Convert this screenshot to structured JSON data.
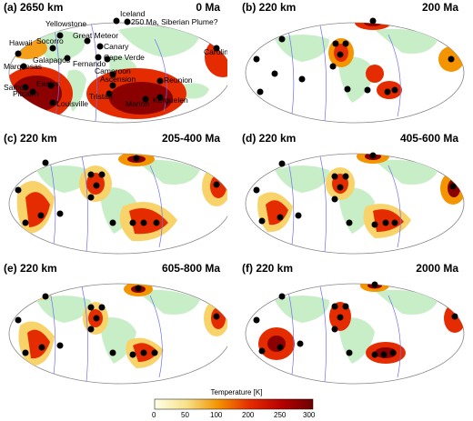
{
  "colors": {
    "hot": "#8b0000",
    "warm": "#e52c00",
    "mid": "#f39400",
    "cool": "#f7d36a",
    "continent": "#c8eec8",
    "plate_boundary": "#6e6ef7",
    "hotspot": "#000000"
  },
  "panels": [
    {
      "label": "(a) 2650 km",
      "age": "0 Ma"
    },
    {
      "label": "(b) 220 km",
      "age": "200 Ma"
    },
    {
      "label": "(c) 220 km",
      "age": "205-400 Ma"
    },
    {
      "label": "(d) 220 km",
      "age": "405-600 Ma"
    },
    {
      "label": "(e) 220 km",
      "age": "605-800 Ma"
    },
    {
      "label": "(f) 220 km",
      "age": "2000 Ma"
    }
  ],
  "hotspot_labels": {
    "iceland": "Iceland",
    "yellowstone": "Yellowstone",
    "siberian": "250 Ma, Siberian Plume?",
    "hawaii": "Hawaii",
    "socorro": "Socorro",
    "great_meteor": "Great Meteor",
    "canary": "Canary",
    "galapagos": "Galapagos",
    "fernando": "Fernando",
    "cape_verde": "Cape Verde",
    "marquesas": "Marquesas",
    "cameroon": "Cameroon",
    "ascension": "Ascension",
    "samoa": "Samoa",
    "easter": "Easter",
    "pitcairn": "Pitcairn",
    "reunion": "Reunion",
    "louisville": "Louisville",
    "tristan": "Tristan",
    "marion": "Marion",
    "kerguelen": "Kerguelen",
    "caroline": "Caroline"
  },
  "colorbar": {
    "title": "Temperature [K]",
    "ticks": [
      "0",
      "50",
      "100",
      "200",
      "250",
      "300"
    ]
  }
}
